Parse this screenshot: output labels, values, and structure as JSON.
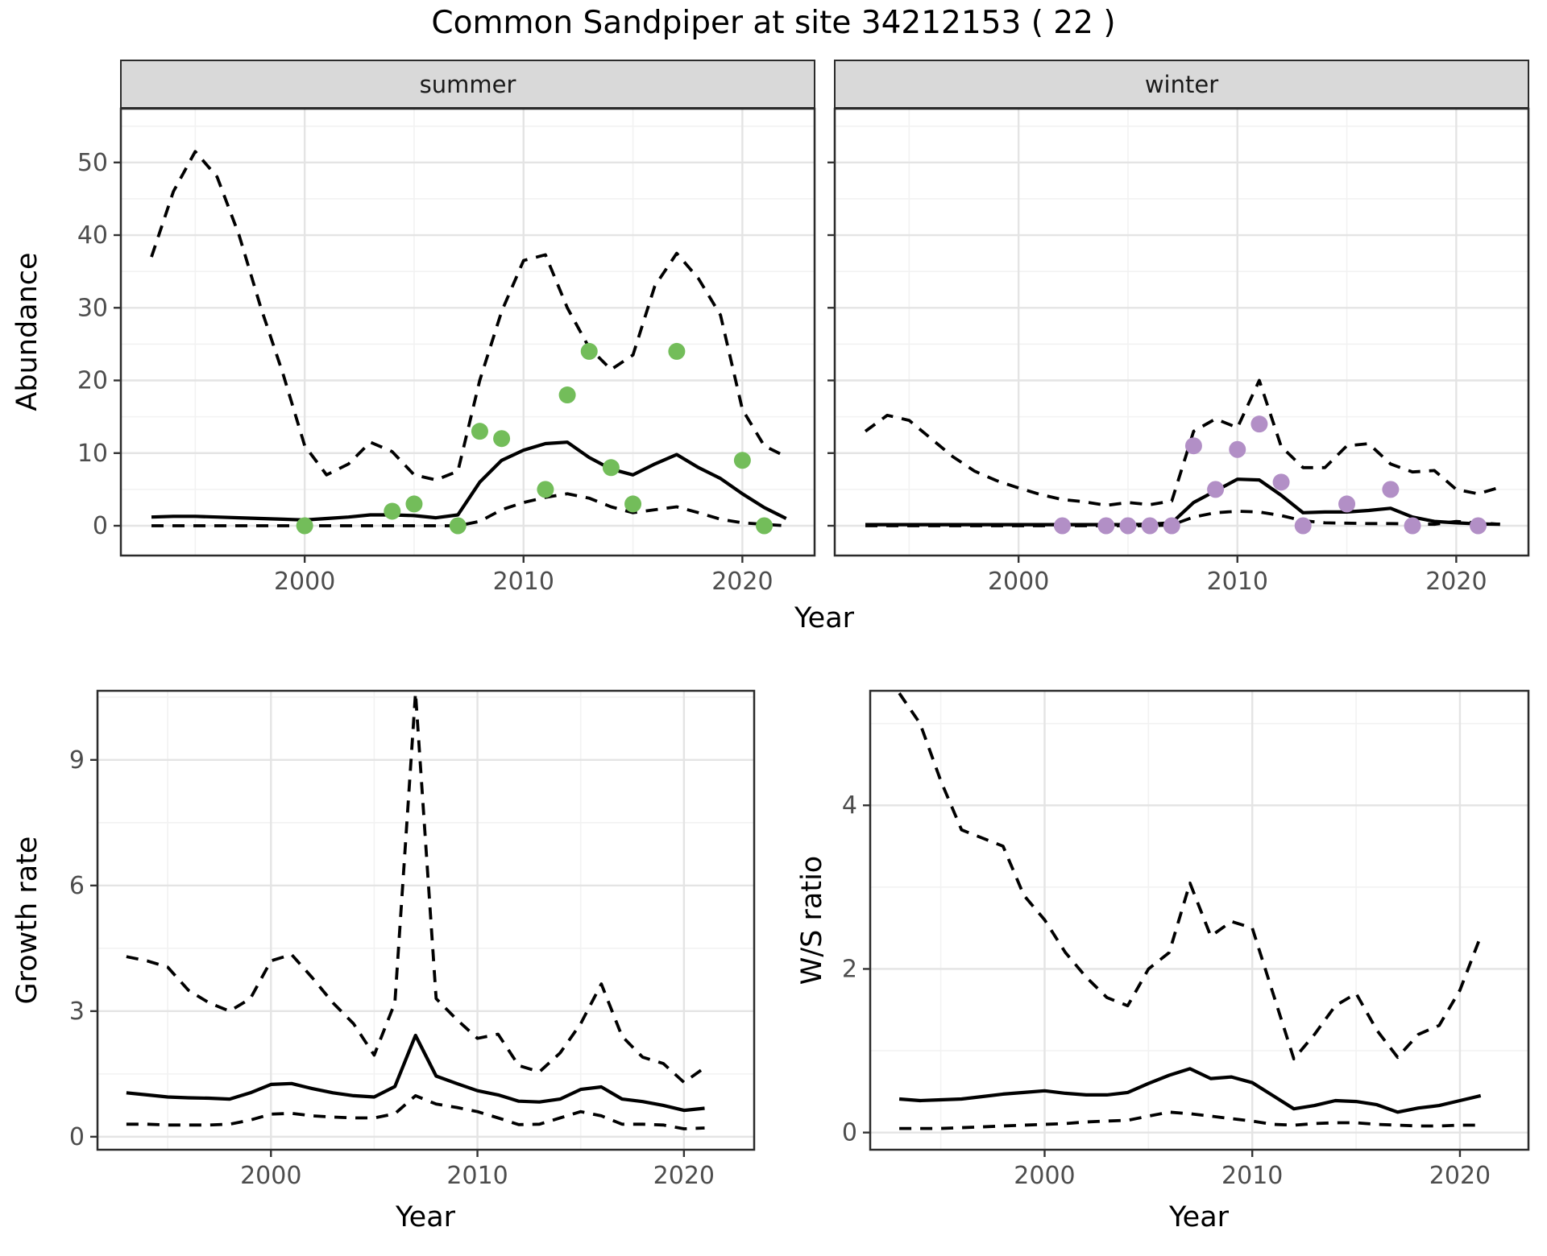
{
  "title": "Common Sandpiper at site 34212153 ( 22 )",
  "colors": {
    "summer_points": "#73BD5A",
    "winter_points": "#B28FC6",
    "line": "#000000",
    "grid_major": "#E4E4E4",
    "grid_minor": "#F2F2F2",
    "panel_border": "#2B2B2B",
    "strip_fill": "#D9D9D9",
    "tick_text": "#4D4D4D"
  },
  "chart_data": [
    {
      "id": "abundance-summer",
      "type": "line",
      "facet": "summer",
      "xlabel": "Year",
      "ylabel": "Abundance",
      "xlim": [
        1991.6,
        2023.3
      ],
      "ylim": [
        -4.1,
        57.4
      ],
      "x_ticks": [
        2000,
        2010,
        2020
      ],
      "x_minor": [
        1995,
        2005,
        2015
      ],
      "y_ticks": [
        0,
        10,
        20,
        30,
        40,
        50
      ],
      "y_minor": [
        5,
        15,
        25,
        35,
        45,
        55
      ],
      "y_tick_labels": true,
      "legend": "none",
      "series": {
        "x": [
          1993,
          1994,
          1995,
          1996,
          1997,
          1998,
          1999,
          2000,
          2001,
          2002,
          2003,
          2004,
          2005,
          2006,
          2007,
          2008,
          2009,
          2010,
          2011,
          2012,
          2013,
          2014,
          2015,
          2016,
          2017,
          2018,
          2019,
          2020,
          2021,
          2022
        ],
        "upper_ci": [
          37,
          46,
          51.5,
          48,
          40,
          30,
          21,
          11,
          7,
          8.5,
          11.5,
          10.2,
          7,
          6.3,
          7.5,
          20,
          29.5,
          36.5,
          37.3,
          30,
          24.5,
          21.5,
          23.5,
          33,
          37.5,
          34,
          29,
          16,
          11,
          9.5
        ],
        "median": [
          1.2,
          1.3,
          1.3,
          1.2,
          1.1,
          1.0,
          0.9,
          0.8,
          1.0,
          1.2,
          1.5,
          1.5,
          1.4,
          1.1,
          1.5,
          6,
          9,
          10.4,
          11.3,
          11.5,
          9.4,
          7.8,
          7.0,
          8.5,
          9.8,
          8.0,
          6.5,
          4.4,
          2.5,
          1.0
        ],
        "lower_ci": [
          0,
          0,
          0,
          0,
          0,
          0,
          0,
          0,
          0,
          0,
          0,
          0,
          0,
          0,
          0,
          0.6,
          2.2,
          3.2,
          3.9,
          4.4,
          3.8,
          2.6,
          1.8,
          2.2,
          2.6,
          1.8,
          0.9,
          0.4,
          0.2,
          0
        ]
      },
      "observations": {
        "name": "summer counts",
        "color": "#73BD5A",
        "data": [
          [
            2000,
            0
          ],
          [
            2004,
            2
          ],
          [
            2005,
            3
          ],
          [
            2007,
            0
          ],
          [
            2008,
            13
          ],
          [
            2009,
            12
          ],
          [
            2011,
            5
          ],
          [
            2012,
            18
          ],
          [
            2013,
            24
          ],
          [
            2014,
            8
          ],
          [
            2015,
            3
          ],
          [
            2017,
            24
          ],
          [
            2020,
            9
          ],
          [
            2021,
            0
          ]
        ]
      }
    },
    {
      "id": "abundance-winter",
      "type": "line",
      "facet": "winter",
      "xlabel": "",
      "ylabel": "",
      "xlim": [
        1991.6,
        2023.3
      ],
      "ylim": [
        -4.1,
        57.4
      ],
      "x_ticks": [
        2000,
        2010,
        2020
      ],
      "x_minor": [
        1995,
        2005,
        2015
      ],
      "y_ticks": [
        0,
        10,
        20,
        30,
        40,
        50
      ],
      "y_minor": [
        5,
        15,
        25,
        35,
        45,
        55
      ],
      "y_tick_labels": false,
      "legend": "none",
      "series": {
        "x": [
          1993,
          1994,
          1995,
          1996,
          1997,
          1998,
          1999,
          2000,
          2001,
          2002,
          2003,
          2004,
          2005,
          2006,
          2007,
          2008,
          2009,
          2010,
          2011,
          2012,
          2013,
          2014,
          2015,
          2016,
          2017,
          2018,
          2019,
          2020,
          2021,
          2022
        ],
        "upper_ci": [
          13,
          15.2,
          14.5,
          12,
          9.5,
          7.5,
          6.2,
          5.2,
          4.3,
          3.6,
          3.3,
          2.8,
          3.2,
          2.9,
          3.4,
          13,
          14.7,
          13.5,
          20,
          10.9,
          8,
          8,
          11,
          11.3,
          8.5,
          7.4,
          7.6,
          5.0,
          4.4,
          5.3
        ],
        "median": [
          0.15,
          0.15,
          0.15,
          0.15,
          0.15,
          0.15,
          0.15,
          0.15,
          0.15,
          0.15,
          0.15,
          0.15,
          0.15,
          0.2,
          0.4,
          3.2,
          4.8,
          6.4,
          6.3,
          4.2,
          1.8,
          1.9,
          1.9,
          2.1,
          2.4,
          1.2,
          0.6,
          0.4,
          0.25,
          0.2
        ],
        "lower_ci": [
          0,
          0,
          0,
          0,
          0,
          0,
          0,
          0,
          0,
          0,
          0,
          0,
          0,
          0,
          0.1,
          1.2,
          1.8,
          2.0,
          1.9,
          1.4,
          0.7,
          0.4,
          0.35,
          0.3,
          0.3,
          0.25,
          0.2,
          0.6,
          0.4,
          0.2
        ]
      },
      "observations": {
        "name": "winter counts",
        "color": "#B28FC6",
        "data": [
          [
            2002,
            0
          ],
          [
            2004,
            0
          ],
          [
            2005,
            0
          ],
          [
            2006,
            0
          ],
          [
            2007,
            0
          ],
          [
            2008,
            11
          ],
          [
            2009,
            5
          ],
          [
            2010,
            10.5
          ],
          [
            2011,
            14
          ],
          [
            2012,
            6
          ],
          [
            2013,
            0
          ],
          [
            2015,
            3
          ],
          [
            2017,
            5
          ],
          [
            2018,
            0
          ],
          [
            2021,
            0
          ]
        ]
      }
    },
    {
      "id": "growth-rate",
      "type": "line",
      "facet": "",
      "xlabel": "Year",
      "ylabel": "Growth rate",
      "xlim": [
        1991.6,
        2023.4
      ],
      "ylim": [
        -0.31,
        10.65
      ],
      "x_ticks": [
        2000,
        2010,
        2020
      ],
      "x_minor": [
        1995,
        2005,
        2015
      ],
      "y_ticks": [
        0,
        3,
        6,
        9
      ],
      "y_minor": [
        1.5,
        4.5,
        7.5,
        10.5
      ],
      "y_tick_labels": true,
      "legend": "none",
      "series": {
        "x": [
          1993,
          1994,
          1995,
          1996,
          1997,
          1998,
          1999,
          2000,
          2001,
          2002,
          2003,
          2004,
          2005,
          2006,
          2007,
          2008,
          2009,
          2010,
          2011,
          2012,
          2013,
          2014,
          2015,
          2016,
          2017,
          2018,
          2019,
          2020,
          2021
        ],
        "upper_ci": [
          4.3,
          4.2,
          4.05,
          3.5,
          3.2,
          3.0,
          3.3,
          4.2,
          4.35,
          3.8,
          3.2,
          2.7,
          1.95,
          3.2,
          10.6,
          3.3,
          2.8,
          2.35,
          2.45,
          1.7,
          1.55,
          2.0,
          2.7,
          3.65,
          2.4,
          1.9,
          1.75,
          1.3,
          1.65
        ],
        "median": [
          1.05,
          1.0,
          0.95,
          0.93,
          0.92,
          0.9,
          1.05,
          1.25,
          1.27,
          1.15,
          1.05,
          0.98,
          0.95,
          1.2,
          2.42,
          1.45,
          1.27,
          1.1,
          1.0,
          0.85,
          0.83,
          0.9,
          1.13,
          1.19,
          0.9,
          0.84,
          0.75,
          0.63,
          0.68
        ],
        "lower_ci": [
          0.3,
          0.3,
          0.28,
          0.28,
          0.28,
          0.3,
          0.4,
          0.54,
          0.56,
          0.5,
          0.47,
          0.45,
          0.45,
          0.55,
          0.98,
          0.78,
          0.7,
          0.6,
          0.45,
          0.29,
          0.3,
          0.45,
          0.6,
          0.5,
          0.3,
          0.3,
          0.28,
          0.19,
          0.21
        ]
      },
      "observations": {
        "name": "",
        "color": "",
        "data": []
      }
    },
    {
      "id": "ws-ratio",
      "type": "line",
      "facet": "",
      "xlabel": "Year",
      "ylabel": "W/S ratio",
      "xlim": [
        1991.6,
        2023.3
      ],
      "ylim": [
        -0.21,
        5.4
      ],
      "x_ticks": [
        2000,
        2010,
        2020
      ],
      "x_minor": [
        1995,
        2005,
        2015
      ],
      "y_ticks": [
        0,
        2,
        4
      ],
      "y_minor": [
        1,
        3,
        5
      ],
      "y_tick_labels": true,
      "legend": "none",
      "series": {
        "x": [
          1993,
          1994,
          1995,
          1996,
          1997,
          1998,
          1999,
          2000,
          2001,
          2002,
          2003,
          2004,
          2005,
          2006,
          2007,
          2008,
          2009,
          2010,
          2011,
          2012,
          2013,
          2014,
          2015,
          2016,
          2017,
          2018,
          2019,
          2020,
          2021
        ],
        "upper_ci": [
          5.37,
          5.0,
          4.3,
          3.7,
          3.6,
          3.5,
          2.9,
          2.6,
          2.2,
          1.9,
          1.65,
          1.55,
          2.0,
          2.2,
          3.05,
          2.4,
          2.58,
          2.5,
          1.7,
          0.9,
          1.2,
          1.55,
          1.7,
          1.25,
          0.92,
          1.2,
          1.31,
          1.74,
          2.4
        ],
        "median": [
          0.41,
          0.39,
          0.4,
          0.41,
          0.44,
          0.47,
          0.49,
          0.51,
          0.48,
          0.46,
          0.46,
          0.49,
          0.6,
          0.7,
          0.78,
          0.66,
          0.68,
          0.61,
          0.45,
          0.29,
          0.33,
          0.39,
          0.38,
          0.34,
          0.25,
          0.3,
          0.33,
          0.39,
          0.45
        ],
        "lower_ci": [
          0.05,
          0.05,
          0.05,
          0.06,
          0.07,
          0.08,
          0.09,
          0.1,
          0.11,
          0.13,
          0.14,
          0.15,
          0.2,
          0.25,
          0.23,
          0.2,
          0.17,
          0.14,
          0.1,
          0.09,
          0.11,
          0.12,
          0.12,
          0.1,
          0.09,
          0.08,
          0.08,
          0.09,
          0.09
        ]
      },
      "observations": {
        "name": "",
        "color": "",
        "data": []
      }
    }
  ]
}
